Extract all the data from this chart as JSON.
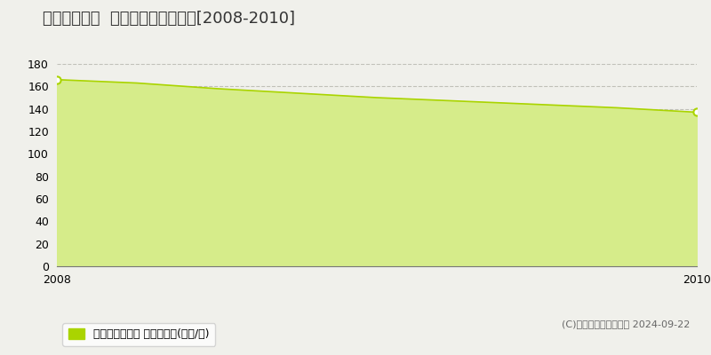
{
  "title": "茨木市新庄町  マンション価格推移[2008-2010]",
  "x": [
    2008,
    2008.25,
    2008.5,
    2008.75,
    2009,
    2009.25,
    2009.5,
    2009.75,
    2010
  ],
  "y": [
    166,
    163,
    158,
    154,
    150,
    147,
    144,
    141,
    137
  ],
  "ylim": [
    0,
    180
  ],
  "yticks": [
    0,
    20,
    40,
    60,
    80,
    100,
    120,
    140,
    160,
    180
  ],
  "xticks": [
    2008,
    2010
  ],
  "xlim": [
    2008,
    2010
  ],
  "line_color": "#aad400",
  "fill_color": "#d6ec8a",
  "marker_color": "#ffffff",
  "marker_edge_color": "#aad400",
  "bg_color": "#f0f0eb",
  "plot_bg_color": "#f0f0eb",
  "grid_color": "#c0c0b8",
  "legend_label": "マンション価格 平均坪単価(万円/坪)",
  "legend_color": "#aad400",
  "copyright_text": "(C)土地価格ドットコム 2024-09-22",
  "title_fontsize": 13,
  "tick_fontsize": 9,
  "legend_fontsize": 9,
  "copyright_fontsize": 8
}
